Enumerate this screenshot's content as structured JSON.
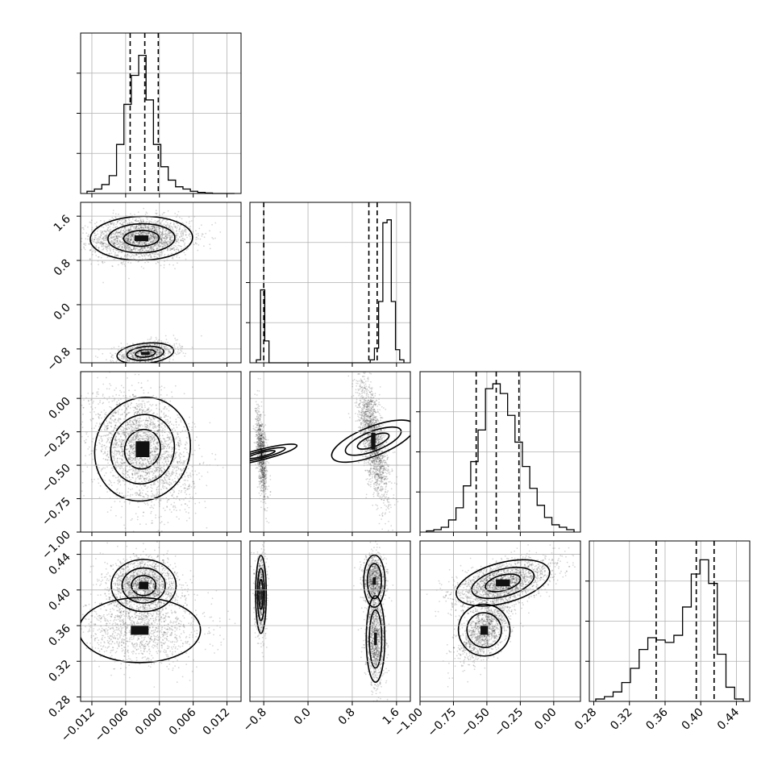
{
  "chart_data": {
    "type": "corner",
    "parameters": [
      {
        "range": [
          -0.014,
          0.0145
        ],
        "ticks": [
          -0.012,
          -0.006,
          0.0,
          0.006,
          0.012
        ],
        "tick_labels": [
          "−0.012",
          "−0.006",
          "0.000",
          "0.006",
          "0.012"
        ],
        "quantiles": [
          -0.0052,
          -0.0026,
          -0.0002
        ],
        "hist": [
          1,
          2,
          4,
          8,
          22,
          40,
          53,
          62,
          42,
          22,
          12,
          6,
          3,
          2,
          1,
          0.5,
          0.2,
          0,
          0,
          0
        ],
        "hist_ymax": 72
      },
      {
        "range": [
          -1.05,
          1.85
        ],
        "ticks": [
          -0.8,
          0.0,
          0.8,
          1.6
        ],
        "tick_labels": [
          "−0.8",
          "0.0",
          "0.8",
          "1.6"
        ],
        "quantiles": [
          -0.8,
          1.1,
          1.25
        ],
        "hist": [
          2,
          50,
          15,
          0,
          0,
          0,
          0,
          0,
          0,
          0,
          0,
          0,
          0,
          0,
          0,
          0,
          0,
          0,
          0,
          0,
          0,
          0,
          0,
          0,
          0,
          0,
          0,
          2,
          10,
          42,
          96,
          98,
          42,
          9,
          2
        ],
        "hist_ymax": 110
      },
      {
        "range": [
          -1.0,
          0.2
        ],
        "ticks": [
          -1.0,
          -0.75,
          -0.5,
          -0.25,
          0.0
        ],
        "tick_labels": [
          "−1.00",
          "−0.75",
          "−0.50",
          "−0.25",
          "0.00"
        ],
        "quantiles": [
          -0.58,
          -0.43,
          -0.26
        ],
        "hist": [
          0.5,
          1,
          2,
          5,
          10,
          19,
          29,
          42,
          59,
          61,
          57,
          48,
          37,
          27,
          18,
          11,
          6,
          3,
          2,
          1
        ],
        "hist_ymax": 66
      },
      {
        "range": [
          0.275,
          0.455
        ],
        "ticks": [
          0.28,
          0.32,
          0.36,
          0.4,
          0.44
        ],
        "tick_labels": [
          "0.28",
          "0.32",
          "0.36",
          "0.40",
          "0.44"
        ],
        "quantiles": [
          0.35,
          0.395,
          0.415
        ],
        "hist": [
          1,
          2,
          4,
          8,
          14,
          22,
          27,
          26,
          25,
          28,
          40,
          54,
          60,
          50,
          20,
          6,
          1
        ],
        "hist_ymax": 68
      }
    ],
    "pairs": [
      {
        "row": 1,
        "col": 0,
        "blobs": [
          {
            "cx": -0.0032,
            "cy": 1.2,
            "sx": 0.0035,
            "sy": 0.15,
            "rho": 0.05,
            "n": 2200,
            "levels": [
              2.6,
              1.7,
              0.9
            ]
          },
          {
            "cx": -0.0025,
            "cy": -0.88,
            "sx": 0.0022,
            "sy": 0.08,
            "rho": 0.3,
            "n": 800,
            "levels": [
              2.3,
              1.5,
              0.8
            ]
          }
        ]
      },
      {
        "row": 2,
        "col": 0,
        "blobs": [
          {
            "cx": -0.003,
            "cy": -0.38,
            "sx": 0.0035,
            "sy": 0.17,
            "rho": -0.3,
            "n": 2600,
            "levels": [
              2.4,
              1.6,
              0.9
            ]
          }
        ]
      },
      {
        "row": 2,
        "col": 1,
        "blobs": [
          {
            "cx": -0.84,
            "cy": -0.42,
            "sx": 0.04,
            "sy": 0.13,
            "rho": -0.5,
            "n": 900,
            "levels": [
              2.4,
              1.6,
              0.9
            ]
          },
          {
            "cx": 1.18,
            "cy": -0.32,
            "sx": 0.11,
            "sy": 0.18,
            "rho": -0.65,
            "n": 1800,
            "levels": [
              2.4,
              1.6,
              0.9
            ]
          }
        ]
      },
      {
        "row": 3,
        "col": 0,
        "blobs": [
          {
            "cx": -0.0028,
            "cy": 0.405,
            "sx": 0.0024,
            "sy": 0.012,
            "rho": 0.0,
            "n": 1700,
            "levels": [
              2.4,
              1.6,
              0.9
            ]
          },
          {
            "cx": -0.0035,
            "cy": 0.355,
            "sx": 0.0045,
            "sy": 0.015,
            "rho": 0.0,
            "n": 1200,
            "levels": [
              2.4
            ]
          }
        ]
      },
      {
        "row": 3,
        "col": 1,
        "blobs": [
          {
            "cx": -0.85,
            "cy": 0.395,
            "sx": 0.04,
            "sy": 0.018,
            "rho": 0.0,
            "n": 900,
            "levels": [
              2.4,
              1.6,
              0.9
            ]
          },
          {
            "cx": 1.2,
            "cy": 0.41,
            "sx": 0.08,
            "sy": 0.012,
            "rho": 0.0,
            "n": 900,
            "levels": [
              2.4,
              1.6
            ]
          },
          {
            "cx": 1.22,
            "cy": 0.345,
            "sx": 0.07,
            "sy": 0.02,
            "rho": 0.0,
            "n": 1100,
            "levels": [
              2.4,
              1.6
            ]
          }
        ]
      },
      {
        "row": 3,
        "col": 2,
        "blobs": [
          {
            "cx": -0.38,
            "cy": 0.408,
            "sx": 0.15,
            "sy": 0.011,
            "rho": 0.55,
            "n": 1800,
            "levels": [
              2.4,
              1.6,
              0.9
            ]
          },
          {
            "cx": -0.52,
            "cy": 0.355,
            "sx": 0.08,
            "sy": 0.015,
            "rho": 0.6,
            "n": 1200,
            "levels": [
              2.4,
              1.6
            ]
          }
        ]
      }
    ],
    "grid": true,
    "xlabel": "",
    "ylabel": ""
  }
}
